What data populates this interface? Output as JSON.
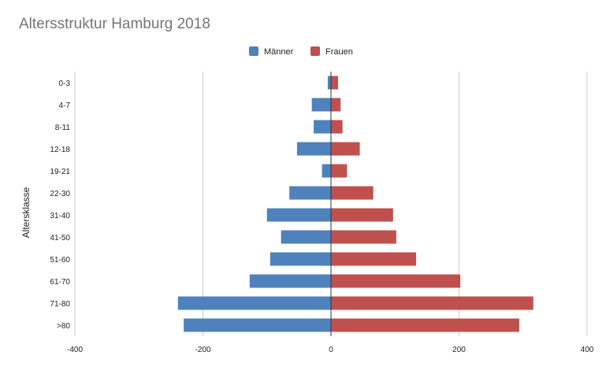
{
  "chart_data": {
    "type": "bar",
    "orientation": "horizontal",
    "title": "Altersstruktur Hamburg 2018",
    "xlabel": "",
    "ylabel": "Altersklasse",
    "categories": [
      "0-3",
      "4-7",
      "8-11",
      "12-18",
      "19-21",
      "22-30",
      "31-40",
      "41-50",
      "51-60",
      "61-70",
      "71-80",
      ">80"
    ],
    "series": [
      {
        "name": "Männer",
        "color": "#4f81bd",
        "values": [
          -5,
          -30,
          -27,
          -53,
          -14,
          -65,
          -100,
          -78,
          -95,
          -127,
          -239,
          -230
        ]
      },
      {
        "name": "Frauen",
        "color": "#c0504d",
        "values": [
          11,
          15,
          18,
          45,
          25,
          66,
          97,
          102,
          133,
          202,
          316,
          294
        ]
      }
    ],
    "xlim": [
      -400,
      400
    ],
    "xticks": [
      -400,
      -200,
      0,
      200,
      400
    ],
    "grid": "vertical",
    "legend_position": "top-center"
  }
}
